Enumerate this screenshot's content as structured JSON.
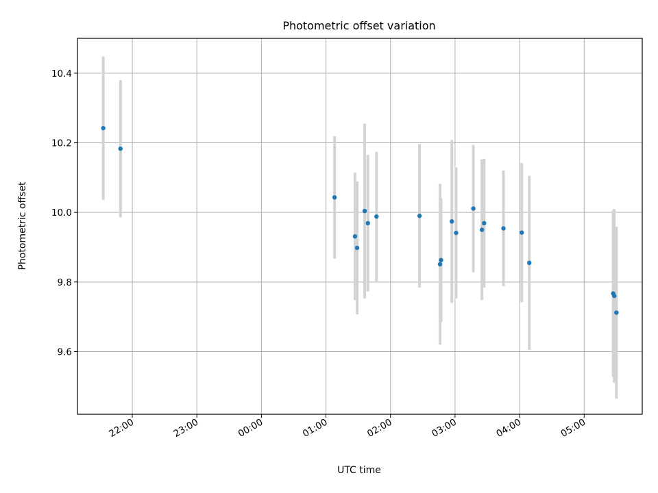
{
  "chart_data": {
    "type": "scatter",
    "title": "Photometric offset variation",
    "xlabel": "UTC time",
    "ylabel": "Photometric offset",
    "x_axis_type": "time",
    "xlim": [
      "21:09",
      "05:54"
    ],
    "ylim": [
      9.42,
      10.5
    ],
    "x_ticks": [
      "22:00",
      "23:00",
      "00:00",
      "01:00",
      "02:00",
      "03:00",
      "04:00",
      "05:00"
    ],
    "y_ticks": [
      "9.6",
      "9.8",
      "10.0",
      "10.2",
      "10.4"
    ],
    "grid": true,
    "legend": "none",
    "colors": {
      "points": "#1f77b4",
      "errorbars": "#d3d3d3",
      "grid": "#b0b0b0"
    },
    "points": [
      {
        "x": "21:33",
        "y": 10.242,
        "yerr": 0.206
      },
      {
        "x": "21:49",
        "y": 10.183,
        "yerr": 0.197
      },
      {
        "x": "01:08",
        "y": 10.043,
        "yerr": 0.176
      },
      {
        "x": "01:27",
        "y": 9.931,
        "yerr": 0.183
      },
      {
        "x": "01:29",
        "y": 9.898,
        "yerr": 0.191
      },
      {
        "x": "01:36",
        "y": 10.004,
        "yerr": 0.251
      },
      {
        "x": "01:39",
        "y": 9.969,
        "yerr": 0.196
      },
      {
        "x": "01:47",
        "y": 9.988,
        "yerr": 0.186
      },
      {
        "x": "02:27",
        "y": 9.99,
        "yerr": 0.206
      },
      {
        "x": "02:46",
        "y": 9.851,
        "yerr": 0.231
      },
      {
        "x": "02:47",
        "y": 9.863,
        "yerr": 0.178
      },
      {
        "x": "02:57",
        "y": 9.974,
        "yerr": 0.234
      },
      {
        "x": "03:01",
        "y": 9.941,
        "yerr": 0.188
      },
      {
        "x": "03:17",
        "y": 10.011,
        "yerr": 0.183
      },
      {
        "x": "03:25",
        "y": 9.95,
        "yerr": 0.202
      },
      {
        "x": "03:27",
        "y": 9.969,
        "yerr": 0.185
      },
      {
        "x": "03:45",
        "y": 9.954,
        "yerr": 0.166
      },
      {
        "x": "04:02",
        "y": 9.942,
        "yerr": 0.2
      },
      {
        "x": "04:09",
        "y": 9.855,
        "yerr": 0.25
      },
      {
        "x": "05:27",
        "y": 9.767,
        "yerr": 0.24
      },
      {
        "x": "05:28",
        "y": 9.76,
        "yerr": 0.25
      },
      {
        "x": "05:30",
        "y": 9.712,
        "yerr": 0.247
      }
    ]
  }
}
